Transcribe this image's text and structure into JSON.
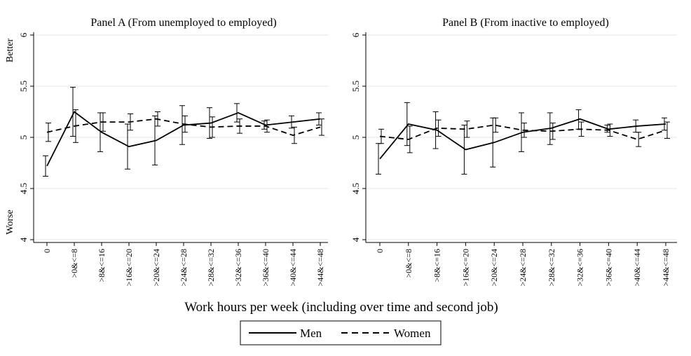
{
  "chart_data": {
    "type": "line",
    "x_title": "Work hours per week (including over time and second job)",
    "categories": [
      "0",
      ">0&<=8",
      ">8&<=16",
      ">16&<=20",
      ">20&<=24",
      ">24&<=28",
      ">28&<=32",
      ">32&<=36",
      ">36&<=40",
      ">40&<=44",
      ">44&<=48"
    ],
    "ylim": [
      4,
      6
    ],
    "yticks": [
      "4",
      "4.5",
      "5",
      "5.5",
      "6"
    ],
    "ytick_values": [
      4,
      4.5,
      5,
      5.5,
      6
    ],
    "y_top_label": "Better",
    "y_bottom_label": "Worse",
    "grid": true,
    "legend": {
      "position": "bottom",
      "entries": [
        "Men",
        "Women"
      ]
    },
    "panels": [
      {
        "title": "Panel A (From unemployed to employed)",
        "series": [
          {
            "name": "Men",
            "style": "solid",
            "values": [
              4.72,
              5.25,
              5.05,
              4.91,
              4.97,
              5.12,
              5.14,
              5.24,
              5.12,
              5.15,
              5.18
            ],
            "lower": [
              4.62,
              5.01,
              4.86,
              4.69,
              4.73,
              4.93,
              4.99,
              5.15,
              5.08,
              5.09,
              5.12
            ],
            "upper": [
              4.82,
              5.49,
              5.24,
              5.13,
              5.21,
              5.31,
              5.29,
              5.33,
              5.16,
              5.21,
              5.24
            ]
          },
          {
            "name": "Women",
            "style": "dashed",
            "values": [
              5.05,
              5.11,
              5.15,
              5.15,
              5.18,
              5.13,
              5.1,
              5.11,
              5.11,
              5.02,
              5.1
            ],
            "lower": [
              4.96,
              4.95,
              5.06,
              5.07,
              5.11,
              5.05,
              5.0,
              5.04,
              5.05,
              4.94,
              5.02
            ],
            "upper": [
              5.14,
              5.27,
              5.24,
              5.23,
              5.25,
              5.21,
              5.2,
              5.18,
              5.17,
              5.1,
              5.18
            ]
          }
        ]
      },
      {
        "title": "Panel B (From inactive to employed)",
        "series": [
          {
            "name": "Men",
            "style": "solid",
            "values": [
              4.79,
              5.13,
              5.07,
              4.88,
              4.95,
              5.05,
              5.09,
              5.18,
              5.08,
              5.11,
              5.13
            ],
            "lower": [
              4.64,
              4.92,
              4.89,
              4.64,
              4.71,
              4.86,
              4.93,
              5.08,
              5.05,
              5.05,
              5.07
            ],
            "upper": [
              4.94,
              5.34,
              5.25,
              5.12,
              5.19,
              5.24,
              5.24,
              5.27,
              5.12,
              5.17,
              5.19
            ]
          },
          {
            "name": "Women",
            "style": "dashed",
            "values": [
              5.01,
              4.98,
              5.09,
              5.08,
              5.12,
              5.07,
              5.06,
              5.08,
              5.07,
              4.98,
              5.07
            ],
            "lower": [
              4.94,
              4.85,
              5.01,
              5.0,
              5.05,
              5.0,
              4.98,
              5.01,
              5.01,
              4.91,
              4.99
            ],
            "upper": [
              5.08,
              5.11,
              5.17,
              5.16,
              5.19,
              5.14,
              5.14,
              5.15,
              5.13,
              5.05,
              5.15
            ]
          }
        ]
      }
    ]
  }
}
